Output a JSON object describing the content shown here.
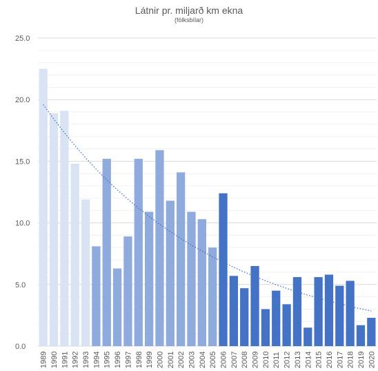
{
  "chart_data": {
    "type": "bar",
    "title": "Látnir pr. miljarð km ekna",
    "subtitle": "(fólksbílar)",
    "xlabel": "",
    "ylabel": "",
    "ylim": [
      0,
      25
    ],
    "y_ticks": [
      "0.0",
      "5.0",
      "10.0",
      "15.0",
      "20.0",
      "25.0"
    ],
    "grid": true,
    "legend": "none",
    "categories": [
      "1989",
      "1990",
      "1991",
      "1992",
      "1993",
      "1994",
      "1995",
      "1996",
      "1997",
      "1998",
      "1999",
      "2000",
      "2001",
      "2002",
      "2003",
      "2004",
      "2005",
      "2006",
      "2007",
      "2008",
      "2009",
      "2010",
      "2011",
      "2012",
      "2013",
      "2014",
      "2015",
      "2016",
      "2017",
      "2018",
      "2019",
      "2020"
    ],
    "values": [
      22.5,
      18.9,
      19.1,
      14.8,
      11.9,
      8.1,
      15.2,
      6.3,
      8.9,
      15.2,
      10.9,
      15.9,
      11.8,
      14.1,
      10.9,
      10.3,
      8.0,
      12.4,
      5.7,
      4.7,
      6.5,
      3.0,
      4.5,
      3.4,
      5.6,
      1.5,
      5.6,
      5.8,
      4.9,
      5.3,
      1.7,
      2.3
    ],
    "colors": [
      "#dae3f3",
      "#dae3f3",
      "#dae3f3",
      "#dae3f3",
      "#dae3f3",
      "#8faadc",
      "#8faadc",
      "#8faadc",
      "#8faadc",
      "#8faadc",
      "#8faadc",
      "#8faadc",
      "#8faadc",
      "#8faadc",
      "#8faadc",
      "#8faadc",
      "#8faadc",
      "#4472c4",
      "#4472c4",
      "#4472c4",
      "#4472c4",
      "#4472c4",
      "#4472c4",
      "#4472c4",
      "#4472c4",
      "#4472c4",
      "#4472c4",
      "#4472c4",
      "#4472c4",
      "#4472c4",
      "#4472c4",
      "#4472c4"
    ],
    "trendline": {
      "type": "exponential",
      "start_value": 19.6,
      "end_value": 2.85,
      "color": "#4472c4"
    }
  }
}
